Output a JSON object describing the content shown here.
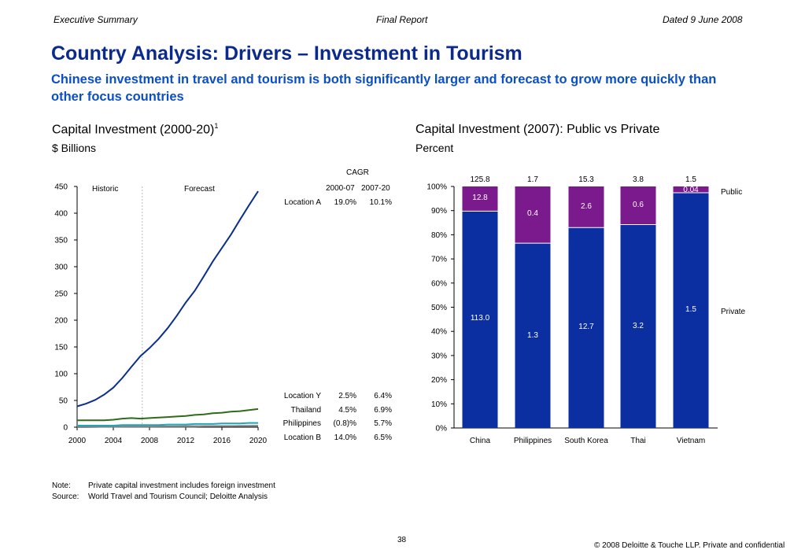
{
  "header": {
    "left": "Executive Summary",
    "center": "Final Report",
    "right": "Dated 9 June 2008"
  },
  "title": "Country Analysis: Drivers – Investment in Tourism",
  "subtitle": "Chinese investment in travel and tourism is both significantly larger and forecast to grow more quickly than other focus countries",
  "left_chart": {
    "title": "Capital Investment (2000-20)",
    "title_sup": "1",
    "unit": "$ Billions",
    "historic_label": "Historic",
    "forecast_label": "Forecast",
    "cagr": {
      "title": "CAGR",
      "col1": "2000-07",
      "col2": "2007-20",
      "rows": [
        {
          "name": "Location A",
          "c1": "19.0%",
          "c2": "10.1%"
        },
        {
          "name": "Location Y",
          "c1": "2.5%",
          "c2": "6.4%"
        },
        {
          "name": "Thailand",
          "c1": "4.5%",
          "c2": "6.9%"
        },
        {
          "name": "Philippines",
          "c1": "(0.8)%",
          "c2": "5.7%"
        },
        {
          "name": "Location B",
          "c1": "14.0%",
          "c2": "6.5%"
        }
      ]
    }
  },
  "right_chart": {
    "title": "Capital Investment (2007): Public vs Private",
    "unit": "Percent",
    "legend_public": "Public",
    "legend_private": "Private"
  },
  "colors": {
    "blue_line": "#0b2f8f",
    "green_line": "#2e6b1a",
    "teal_line": "#1fa7b8",
    "gray_line": "#808080",
    "private_bar": "#0b2fa0",
    "public_bar": "#7b1a8c",
    "title_blue": "#0b2a8c",
    "subtitle_blue": "#0b4fc7"
  },
  "chart_data": [
    {
      "type": "line",
      "ylim": [
        0,
        450
      ],
      "xlim": [
        2000,
        2020
      ],
      "x_ticks": [
        "2000",
        "2004",
        "2008",
        "2012",
        "2016",
        "2020"
      ],
      "y_ticks": [
        "0",
        "50",
        "100",
        "150",
        "200",
        "250",
        "300",
        "350",
        "400",
        "450"
      ],
      "divider_year": 2007,
      "series": [
        {
          "name": "Location A",
          "color": "#0b2f8f",
          "x": [
            2000,
            2001,
            2002,
            2003,
            2004,
            2005,
            2006,
            2007,
            2008,
            2009,
            2010,
            2011,
            2012,
            2013,
            2014,
            2015,
            2016,
            2017,
            2018,
            2019,
            2020
          ],
          "y": [
            39,
            44,
            51,
            61,
            74,
            92,
            113,
            133,
            148,
            165,
            185,
            208,
            233,
            255,
            282,
            310,
            335,
            360,
            388,
            415,
            441
          ]
        },
        {
          "name": "Location Y",
          "color": "#2e6b1a",
          "x": [
            2000,
            2001,
            2002,
            2003,
            2004,
            2005,
            2006,
            2007,
            2008,
            2009,
            2010,
            2011,
            2012,
            2013,
            2014,
            2015,
            2016,
            2017,
            2018,
            2019,
            2020
          ],
          "y": [
            13,
            13,
            13,
            13,
            14,
            16,
            17,
            16,
            17,
            18,
            19,
            20,
            21,
            23,
            24,
            26,
            27,
            29,
            30,
            32,
            34
          ]
        },
        {
          "name": "Thailand",
          "color": "#1fa7b8",
          "x": [
            2000,
            2001,
            2002,
            2003,
            2004,
            2005,
            2006,
            2007,
            2008,
            2009,
            2010,
            2011,
            2012,
            2013,
            2014,
            2015,
            2016,
            2017,
            2018,
            2019,
            2020
          ],
          "y": [
            3,
            3,
            3,
            3,
            3,
            4,
            4,
            4,
            4,
            4,
            5,
            5,
            5,
            6,
            6,
            6,
            7,
            7,
            7,
            8,
            8
          ]
        },
        {
          "name": "Philippines",
          "color": "#808080",
          "x": [
            2000,
            2001,
            2002,
            2003,
            2004,
            2005,
            2006,
            2007,
            2008,
            2009,
            2010,
            2011,
            2012,
            2013,
            2014,
            2015,
            2016,
            2017,
            2018,
            2019,
            2020
          ],
          "y": [
            1,
            1,
            1,
            1,
            1,
            1,
            1,
            1,
            1,
            1,
            1,
            1,
            1,
            1,
            2,
            2,
            2,
            2,
            2,
            2,
            2
          ]
        },
        {
          "name": "Location B",
          "color": "#5a5a5a",
          "x": [
            2000,
            2001,
            2002,
            2003,
            2004,
            2005,
            2006,
            2007,
            2008,
            2009,
            2010,
            2011,
            2012,
            2013,
            2014,
            2015,
            2016,
            2017,
            2018,
            2019,
            2020
          ],
          "y": [
            0.5,
            0.5,
            0.6,
            0.7,
            0.8,
            0.9,
            1,
            1.1,
            1.2,
            1.3,
            1.4,
            1.5,
            1.6,
            1.7,
            1.8,
            1.9,
            2,
            2.1,
            2.3,
            2.4,
            2.5
          ]
        }
      ]
    },
    {
      "type": "bar",
      "stacked": true,
      "categories": [
        "China",
        "Philippines",
        "South Korea",
        "Thai",
        "Vietnam"
      ],
      "totals": [
        "125.8",
        "1.7",
        "15.3",
        "3.8",
        "1.5"
      ],
      "y_ticks": [
        "0%",
        "10%",
        "20%",
        "30%",
        "40%",
        "50%",
        "60%",
        "70%",
        "80%",
        "90%",
        "100%"
      ],
      "ylim": [
        0,
        100
      ],
      "series": [
        {
          "name": "Private",
          "values_pct": [
            89.8,
            76.5,
            83.0,
            84.2,
            97.4
          ],
          "labels": [
            "113.0",
            "1.3",
            "12.7",
            "3.2",
            "1.5"
          ]
        },
        {
          "name": "Public",
          "values_pct": [
            10.2,
            23.5,
            17.0,
            15.8,
            2.6
          ],
          "labels": [
            "12.8",
            "0.4",
            "2.6",
            "0.6",
            "0.04"
          ]
        }
      ]
    }
  ],
  "footer": {
    "note_label": "Note:",
    "note_text": "Private capital investment includes foreign investment",
    "source_label": "Source:",
    "source_text": "World Travel and Tourism Council; Deloitte Analysis",
    "page_number": "38",
    "copyright": "© 2008 Deloitte & Touche LLP. Private and confidential"
  }
}
